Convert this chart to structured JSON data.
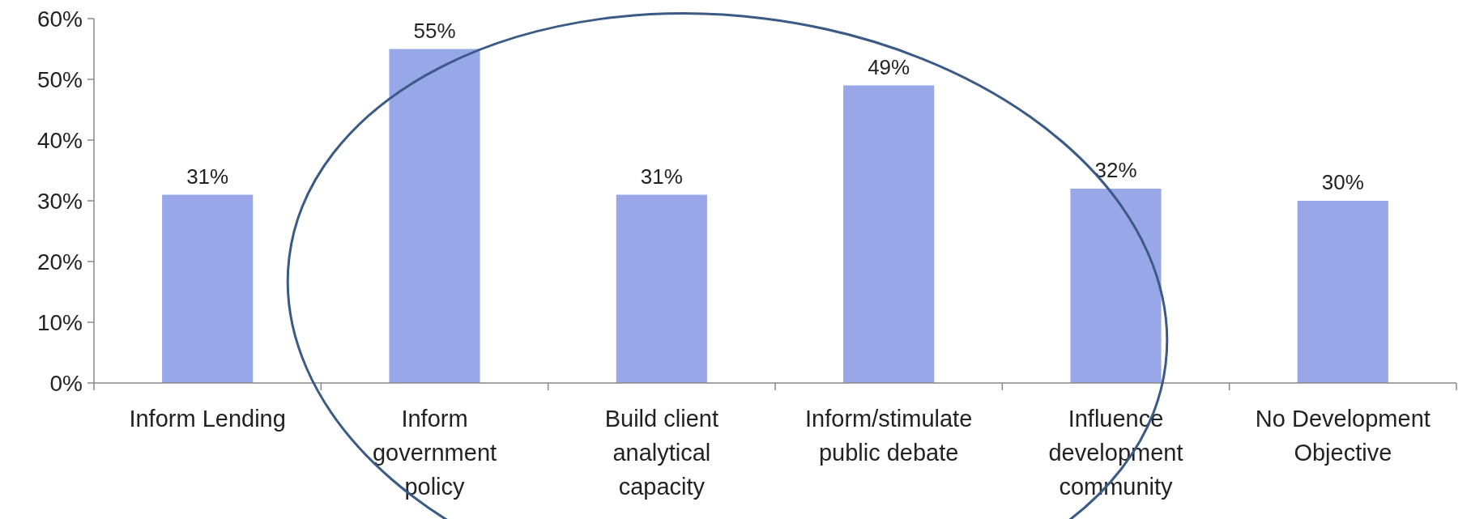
{
  "chart_data": {
    "type": "bar",
    "categories": [
      "Inform Lending",
      "Inform government policy",
      "Build client analytical capacity",
      "Inform/stimulate public debate",
      "Influence development community",
      "No Development Objective"
    ],
    "values": [
      31,
      55,
      31,
      49,
      32,
      30
    ],
    "color": "#97a7e8",
    "ylim": [
      0,
      60
    ],
    "yticks": [
      {
        "value": 0,
        "label": "0%"
      },
      {
        "value": 10,
        "label": "10%"
      },
      {
        "value": 20,
        "label": "20%"
      },
      {
        "value": 30,
        "label": "30%"
      },
      {
        "value": 40,
        "label": "40%"
      },
      {
        "value": 50,
        "label": "50%"
      },
      {
        "value": 60,
        "label": "60%"
      }
    ],
    "value_labels": [
      "31%",
      "55%",
      "31%",
      "49%",
      "32%",
      "30%"
    ],
    "grid": false
  }
}
